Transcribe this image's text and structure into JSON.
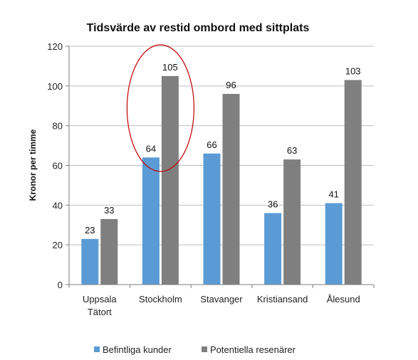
{
  "chart_data": {
    "type": "bar",
    "title": "Tidsvärde av restid ombord med sittplats",
    "xlabel": "",
    "ylabel": "Kronor per timme",
    "ylim": [
      0,
      120
    ],
    "yticks": [
      0,
      20,
      40,
      60,
      80,
      100,
      120
    ],
    "grid": true,
    "legend": "bottom",
    "categories": [
      [
        "Uppsala",
        "Tätort"
      ],
      [
        "Stockholm"
      ],
      [
        "Stavanger"
      ],
      [
        "Kristiansand"
      ],
      [
        "Ålesund"
      ]
    ],
    "series": [
      {
        "name": "Befintliga kunder",
        "color": "#5b9bd5",
        "values": [
          23,
          64,
          66,
          36,
          41
        ]
      },
      {
        "name": "Potentiella resenärer",
        "color": "#7f7f7f",
        "values": [
          33,
          105,
          96,
          63,
          103
        ]
      }
    ],
    "annotation": {
      "shape": "ellipse",
      "color": "#c00000",
      "highlight_category": "Stockholm"
    }
  }
}
